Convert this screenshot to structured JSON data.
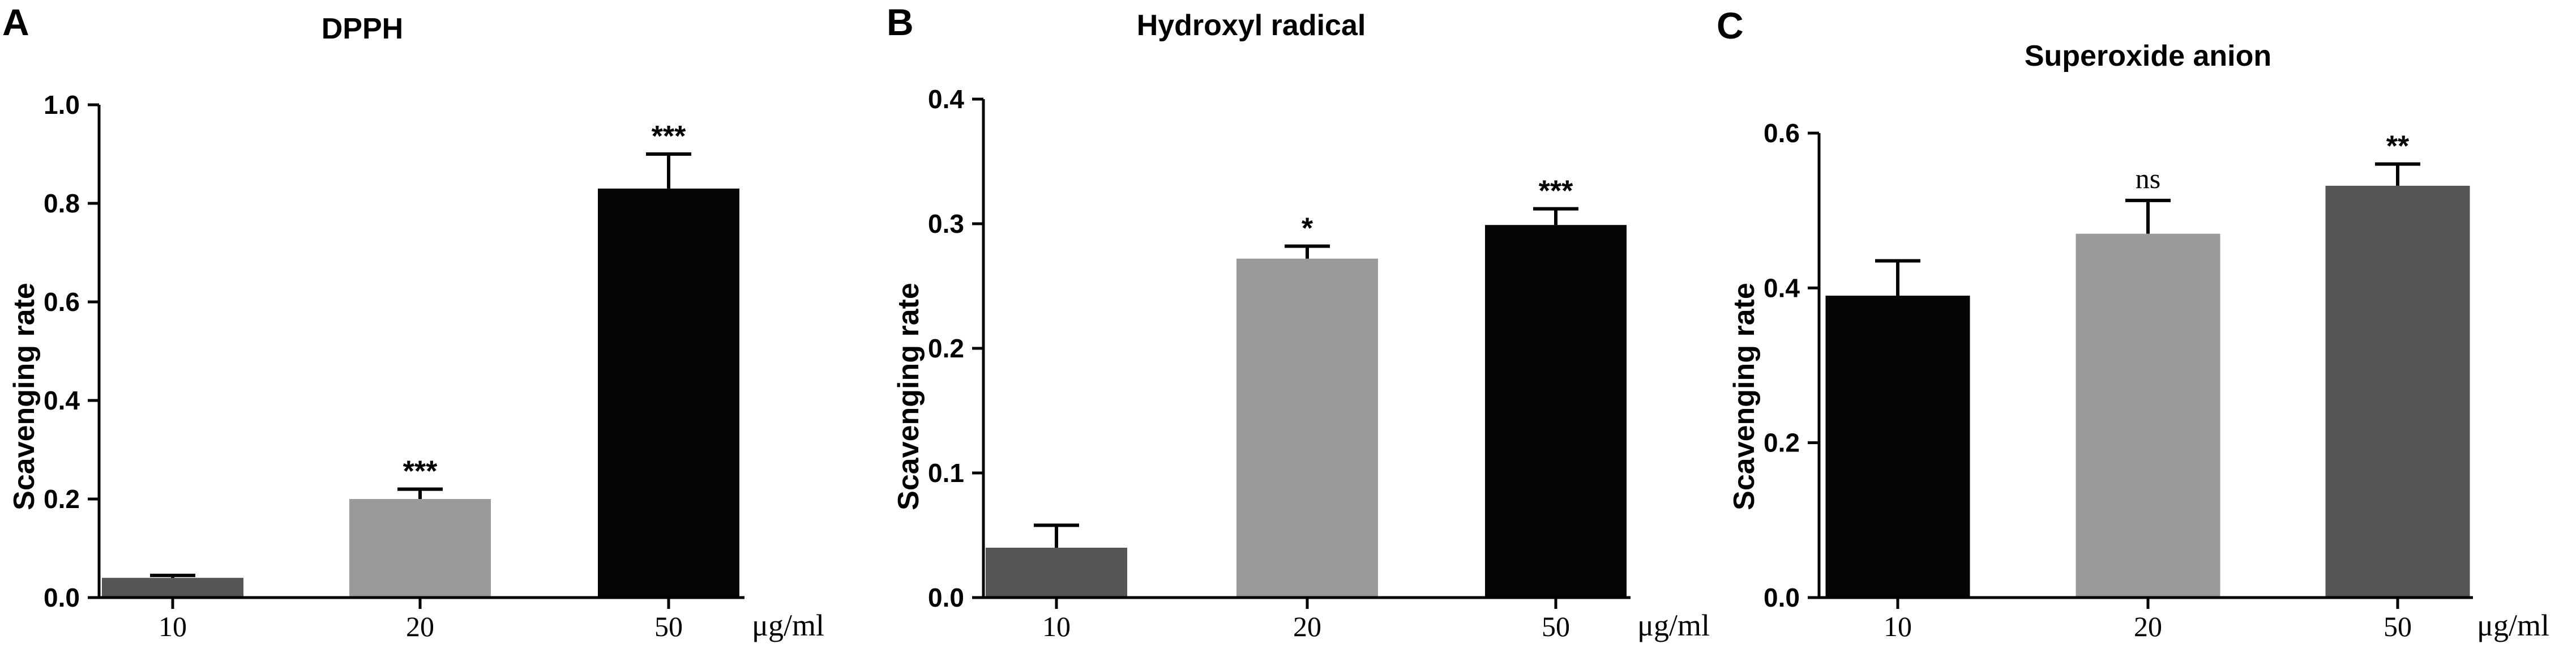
{
  "colors": {
    "black": "#050505",
    "light_gray": "#9a9a9a",
    "dark_gray": "#555555"
  },
  "unit_label": "μg/ml",
  "chart_data": [
    {
      "panel": "A",
      "type": "bar",
      "title": "DPPH",
      "ylabel": "Scavenging rate",
      "xlabel": "",
      "ylim": [
        0,
        1.0
      ],
      "yticks": [
        "0.0",
        "0.2",
        "0.4",
        "0.6",
        "0.8",
        "1.0"
      ],
      "categories": [
        "10",
        "20",
        "50"
      ],
      "values": [
        0.04,
        0.2,
        0.83
      ],
      "errors": [
        0.005,
        0.02,
        0.07
      ],
      "significance": [
        "",
        "***",
        "***"
      ],
      "bar_colors": [
        "#555555",
        "#9a9a9a",
        "#050505"
      ]
    },
    {
      "panel": "B",
      "type": "bar",
      "title": "Hydroxyl radical",
      "ylabel": "Scavenging rate",
      "xlabel": "",
      "ylim": [
        0,
        0.4
      ],
      "yticks": [
        "0.0",
        "0.1",
        "0.2",
        "0.3",
        "0.4"
      ],
      "categories": [
        "10",
        "20",
        "50"
      ],
      "values": [
        0.04,
        0.272,
        0.299
      ],
      "errors": [
        0.018,
        0.01,
        0.013
      ],
      "significance": [
        "",
        "*",
        "***"
      ],
      "bar_colors": [
        "#555555",
        "#9a9a9a",
        "#050505"
      ]
    },
    {
      "panel": "C",
      "type": "bar",
      "title": "Superoxide anion",
      "ylabel": "Scavenging rate",
      "xlabel": "",
      "ylim": [
        0,
        0.6
      ],
      "yticks": [
        "0.0",
        "0.2",
        "0.4",
        "0.6"
      ],
      "categories": [
        "10",
        "20",
        "50"
      ],
      "values": [
        0.39,
        0.47,
        0.532
      ],
      "errors": [
        0.045,
        0.043,
        0.028
      ],
      "significance": [
        "",
        "ns",
        "**"
      ],
      "bar_colors": [
        "#050505",
        "#9a9a9a",
        "#555555"
      ]
    }
  ]
}
